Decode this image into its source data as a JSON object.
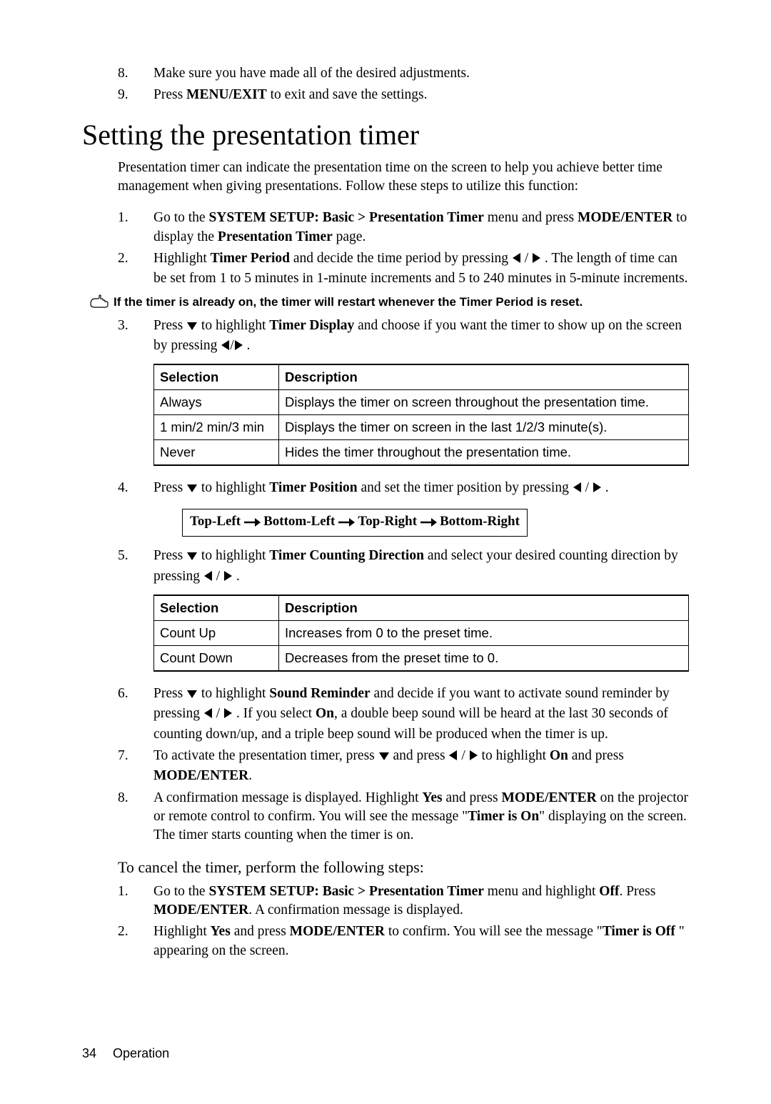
{
  "colors": {
    "background": "#ffffff",
    "text": "#000000",
    "border": "#000000"
  },
  "top_list": [
    {
      "num": "8.",
      "parts": [
        {
          "t": "Make sure you have made all of the desired adjustments.",
          "b": false
        }
      ]
    },
    {
      "num": "9.",
      "parts": [
        {
          "t": "Press ",
          "b": false
        },
        {
          "t": "MENU/EXIT",
          "b": true
        },
        {
          "t": " to exit and save the settings.",
          "b": false
        }
      ]
    }
  ],
  "section_title": "Setting the presentation timer",
  "intro": "Presentation timer can indicate the presentation time on the screen to help you achieve better time management when giving presentations. Follow these steps to utilize this function:",
  "list_a": [
    {
      "num": "1.",
      "parts": [
        {
          "t": "Go to the ",
          "b": false
        },
        {
          "t": "SYSTEM SETUP: Basic > Presentation Timer",
          "b": true
        },
        {
          "t": " menu and press ",
          "b": false
        },
        {
          "t": "MODE/ENTER",
          "b": true
        },
        {
          "t": " to display the ",
          "b": false
        },
        {
          "t": "Presentation Timer",
          "b": true
        },
        {
          "t": " page.",
          "b": false
        }
      ]
    },
    {
      "num": "2.",
      "parts": [
        {
          "t": "Highlight ",
          "b": false
        },
        {
          "t": "Timer Period",
          "b": true
        },
        {
          "t": " and decide the time period by pressing ",
          "b": false
        },
        {
          "ico": "left"
        },
        {
          "t": " / ",
          "b": false
        },
        {
          "ico": "right"
        },
        {
          "t": " . The length of time can be set from 1 to 5 minutes in 1-minute increments and 5 to 240 minutes in 5-minute increments.",
          "b": false
        }
      ]
    }
  ],
  "note": "If the timer is already on, the timer will restart whenever the Timer Period is reset.",
  "list_b": [
    {
      "num": "3.",
      "parts": [
        {
          "t": "Press ",
          "b": false
        },
        {
          "ico": "down"
        },
        {
          "t": " to highlight ",
          "b": false
        },
        {
          "t": "Timer Display",
          "b": true
        },
        {
          "t": " and choose if you want the timer to show up on the screen by pressing ",
          "b": false
        },
        {
          "ico": "left"
        },
        {
          "t": "/",
          "b": false
        },
        {
          "ico": "right"
        },
        {
          "t": " .",
          "b": false
        }
      ]
    }
  ],
  "table1": {
    "headers": [
      "Selection",
      "Description"
    ],
    "col_widths": [
      "175px",
      "auto"
    ],
    "rows": [
      [
        "Always",
        "Displays the timer on screen throughout the presentation time."
      ],
      [
        "1 min/2 min/3 min",
        "Displays the timer on screen in the last 1/2/3 minute(s)."
      ],
      [
        "Never",
        "Hides the timer throughout the presentation time."
      ]
    ]
  },
  "list_c": [
    {
      "num": "4.",
      "parts": [
        {
          "t": "Press ",
          "b": false
        },
        {
          "ico": "down"
        },
        {
          "t": " to highlight ",
          "b": false
        },
        {
          "t": "Timer Position",
          "b": true
        },
        {
          "t": " and set the timer position by pressing ",
          "b": false
        },
        {
          "ico": "left"
        },
        {
          "t": " / ",
          "b": false
        },
        {
          "ico": "right"
        },
        {
          "t": " .",
          "b": false
        }
      ]
    }
  ],
  "cycle": [
    "Top-Left",
    "Bottom-Left",
    "Top-Right",
    "Bottom-Right"
  ],
  "list_d": [
    {
      "num": "5.",
      "parts": [
        {
          "t": "Press ",
          "b": false
        },
        {
          "ico": "down"
        },
        {
          "t": " to highlight ",
          "b": false
        },
        {
          "t": "Timer Counting Direction",
          "b": true
        },
        {
          "t": " and select your desired counting direction by pressing ",
          "b": false
        },
        {
          "ico": "left"
        },
        {
          "t": " / ",
          "b": false
        },
        {
          "ico": "right"
        },
        {
          "t": " .",
          "b": false
        }
      ]
    }
  ],
  "table2": {
    "headers": [
      "Selection",
      "Description"
    ],
    "col_widths": [
      "175px",
      "auto"
    ],
    "rows": [
      [
        "Count Up",
        "Increases from 0 to the preset time."
      ],
      [
        "Count Down",
        "Decreases from the preset time to 0."
      ]
    ]
  },
  "list_e": [
    {
      "num": "6.",
      "parts": [
        {
          "t": "Press ",
          "b": false
        },
        {
          "ico": "down"
        },
        {
          "t": " to highlight ",
          "b": false
        },
        {
          "t": "Sound Reminder",
          "b": true
        },
        {
          "t": " and decide if you want to activate sound reminder by pressing ",
          "b": false
        },
        {
          "ico": "left"
        },
        {
          "t": " / ",
          "b": false
        },
        {
          "ico": "right"
        },
        {
          "t": " . If you select ",
          "b": false
        },
        {
          "t": "On",
          "b": true
        },
        {
          "t": ", a double beep sound will be heard at the last 30 seconds of counting down/up, and a triple beep sound will be produced when the timer is up.",
          "b": false
        }
      ]
    },
    {
      "num": "7.",
      "parts": [
        {
          "t": "To activate the presentation timer, press ",
          "b": false
        },
        {
          "ico": "down"
        },
        {
          "t": " and press ",
          "b": false
        },
        {
          "ico": "left"
        },
        {
          "t": " / ",
          "b": false
        },
        {
          "ico": "right"
        },
        {
          "t": " to highlight ",
          "b": false
        },
        {
          "t": "On",
          "b": true
        },
        {
          "t": " and press ",
          "b": false
        },
        {
          "t": "MODE/ENTER",
          "b": true
        },
        {
          "t": ".",
          "b": false
        }
      ]
    },
    {
      "num": "8.",
      "parts": [
        {
          "t": "A confirmation message is displayed. Highlight ",
          "b": false
        },
        {
          "t": "Yes",
          "b": true
        },
        {
          "t": " and press ",
          "b": false
        },
        {
          "t": "MODE/ENTER",
          "b": true
        },
        {
          "t": " on the projector or remote control to confirm. You will see the message \"",
          "b": false
        },
        {
          "t": "Timer is On",
          "b": true
        },
        {
          "t": "\" displaying on the screen. The timer starts counting when the timer is on.",
          "b": false
        }
      ]
    }
  ],
  "subhead": "To cancel the timer, perform the following steps:",
  "list_f": [
    {
      "num": "1.",
      "parts": [
        {
          "t": "Go to the ",
          "b": false
        },
        {
          "t": "SYSTEM SETUP: Basic > Presentation Timer",
          "b": true
        },
        {
          "t": " menu and highlight ",
          "b": false
        },
        {
          "t": "Off",
          "b": true
        },
        {
          "t": ". Press ",
          "b": false
        },
        {
          "t": "MODE/ENTER",
          "b": true
        },
        {
          "t": ". A confirmation message is displayed.",
          "b": false
        }
      ]
    },
    {
      "num": "2.",
      "parts": [
        {
          "t": "Highlight ",
          "b": false
        },
        {
          "t": "Yes ",
          "b": true
        },
        {
          "t": "and press ",
          "b": false
        },
        {
          "t": "MODE/ENTER",
          "b": true
        },
        {
          "t": " to confirm. You will see the message \"",
          "b": false
        },
        {
          "t": "Timer is Off ",
          "b": true
        },
        {
          "t": "\" appearing on the screen.",
          "b": false
        }
      ]
    }
  ],
  "footer": {
    "page": "34",
    "section": "Operation"
  }
}
